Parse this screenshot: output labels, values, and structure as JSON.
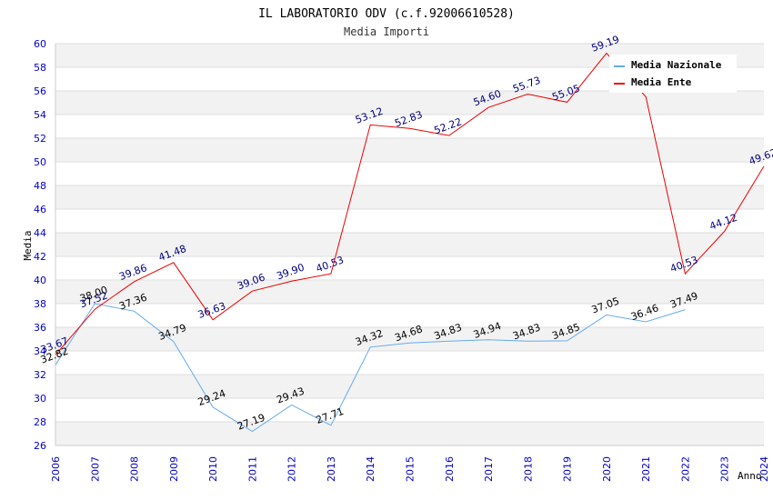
{
  "chart_data": {
    "type": "line",
    "title": "IL LABORATORIO ODV (c.f.92006610528)",
    "subtitle": "Media Importi",
    "xlabel": "Anno",
    "ylabel": "Media",
    "ylim": [
      26,
      60
    ],
    "y_ticks": [
      "26",
      "28",
      "30",
      "32",
      "34",
      "36",
      "38",
      "40",
      "42",
      "44",
      "46",
      "48",
      "50",
      "52",
      "54",
      "56",
      "58",
      "60"
    ],
    "x": [
      "2006",
      "2007",
      "2008",
      "2009",
      "2010",
      "2011",
      "2012",
      "2013",
      "2014",
      "2015",
      "2016",
      "2017",
      "2018",
      "2019",
      "2020",
      "2021",
      "2022",
      "2023",
      "2024"
    ],
    "grid": "horizontal, alternating bands",
    "legend_position": "top-right",
    "series": [
      {
        "name": "Media Nazionale",
        "color": "#66aaee",
        "label_color": "#000000",
        "values": [
          32.82,
          38.0,
          37.36,
          34.79,
          29.24,
          27.19,
          29.43,
          27.71,
          34.32,
          34.68,
          34.83,
          34.94,
          34.83,
          34.85,
          37.05,
          36.46,
          37.49,
          null,
          null
        ],
        "labels": [
          "32.82",
          "38.00",
          "37.36",
          "34.79",
          "29.24",
          "27.19",
          "29.43",
          "27.71",
          "34.32",
          "34.68",
          "34.83",
          "34.94",
          "34.83",
          "34.85",
          "37.05",
          "36.46",
          "37.49",
          null,
          null
        ]
      },
      {
        "name": "Media Ente",
        "color": "#ee0000",
        "label_color": "#000080",
        "values": [
          33.67,
          37.52,
          39.86,
          41.48,
          36.63,
          39.06,
          39.9,
          40.53,
          53.12,
          52.83,
          52.22,
          54.6,
          55.73,
          55.05,
          59.19,
          55.5,
          40.53,
          44.12,
          49.62
        ],
        "labels": [
          "33.67",
          "37.52",
          "39.86",
          "41.48",
          "36.63",
          "39.06",
          "39.90",
          "40.53",
          "53.12",
          "52.83",
          "52.22",
          "54.60",
          "55.73",
          "55.05",
          "59.19",
          null,
          "40.53",
          "44.12",
          "49.62"
        ]
      }
    ]
  }
}
